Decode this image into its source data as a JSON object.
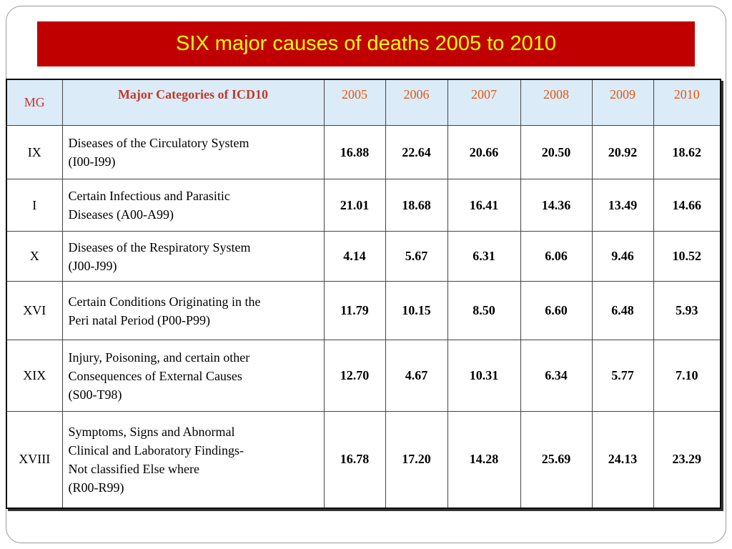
{
  "title": "SIX major causes of deaths 2005 to 2010",
  "table": {
    "header": [
      "MG",
      "Major Categories of ICD10",
      "2005",
      "2006",
      "2007",
      "2008",
      "2009",
      "2010"
    ],
    "rows": [
      [
        "IX",
        "Diseases  of the Circulatory System\n(I00-I99)",
        "16.88",
        "22.64",
        "20.66",
        "20.50",
        "20.92",
        "18.62"
      ],
      [
        "I",
        "Certain Infectious and Parasitic\nDiseases  (A00-A99)",
        "21.01",
        "18.68",
        "16.41",
        "14.36",
        "13.49",
        "14.66"
      ],
      [
        "X",
        "Diseases of the Respiratory System\n(J00-J99)",
        "4.14",
        "5.67",
        "6.31",
        "6.06",
        "9.46",
        "10.52"
      ],
      [
        "XVI",
        "Certain Conditions Originating in the\nPeri natal  Period (P00-P99)",
        "11.79",
        "10.15",
        "8.50",
        "6.60",
        "6.48",
        "5.93"
      ],
      [
        "XIX",
        "Injury, Poisoning, and certain other\nConsequences of External Causes\n(S00-T98)",
        "12.70",
        "4.67",
        "10.31",
        "6.34",
        "5.77",
        "7.10"
      ],
      [
        "XVIII",
        "Symptoms, Signs and Abnormal\nClinical and Laboratory Findings-\nNot classified Else where\n(R00-R99)",
        "16.78",
        "17.20",
        "14.28",
        "25.69",
        "24.13",
        "23.29"
      ]
    ]
  }
}
